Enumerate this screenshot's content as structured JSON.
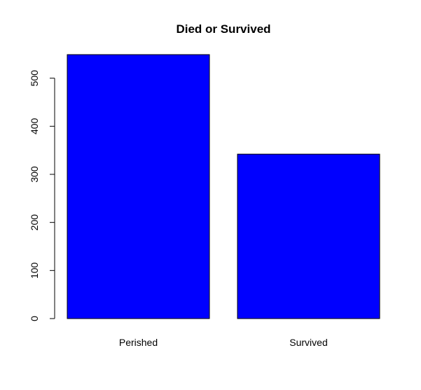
{
  "chart_data": {
    "type": "bar",
    "title": "Died or Survived",
    "xlabel": "",
    "ylabel": "",
    "categories": [
      "Perished",
      "Survived"
    ],
    "values": [
      549,
      342
    ],
    "ylim": [
      0,
      549
    ],
    "yticks": [
      0,
      100,
      200,
      300,
      400,
      500
    ],
    "bar_color": "#0000ff",
    "bar_border_color": "#000000",
    "grid": false,
    "legend": "none"
  }
}
